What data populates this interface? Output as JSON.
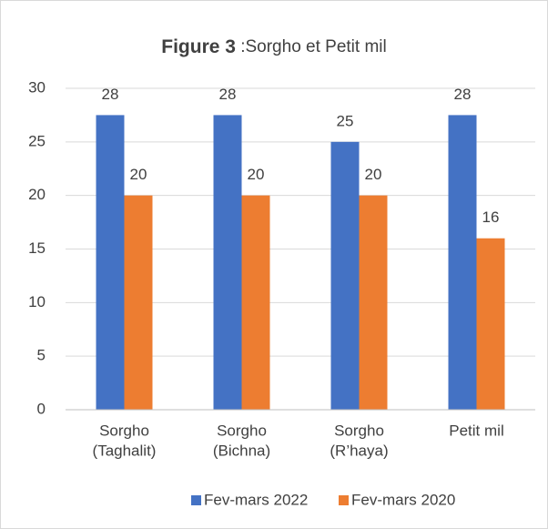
{
  "chart_data": {
    "type": "bar",
    "title": [
      "Figure 3",
      " :Sorgho et Petit mil"
    ],
    "categories": [
      [
        "Sorgho",
        "(Taghalit)"
      ],
      [
        "Sorgho",
        "(Bichna)"
      ],
      [
        "Sorgho",
        "(R’haya)"
      ],
      [
        "Petit mil"
      ]
    ],
    "series": [
      {
        "name": "Fev-mars 2022",
        "color": "#4472c4",
        "values": [
          27.5,
          27.5,
          25,
          27.5
        ],
        "value_labels": [
          "28",
          "28",
          "25",
          "28"
        ]
      },
      {
        "name": "Fev-mars 2020",
        "color": "#ed7d31",
        "values": [
          20,
          20,
          20,
          16
        ],
        "value_labels": [
          "20",
          "20",
          "20",
          "16"
        ]
      }
    ],
    "ylim": [
      0,
      30
    ],
    "yticks": [
      0,
      5,
      10,
      15,
      20,
      25,
      30
    ],
    "grid": true,
    "legend": "bottom"
  }
}
